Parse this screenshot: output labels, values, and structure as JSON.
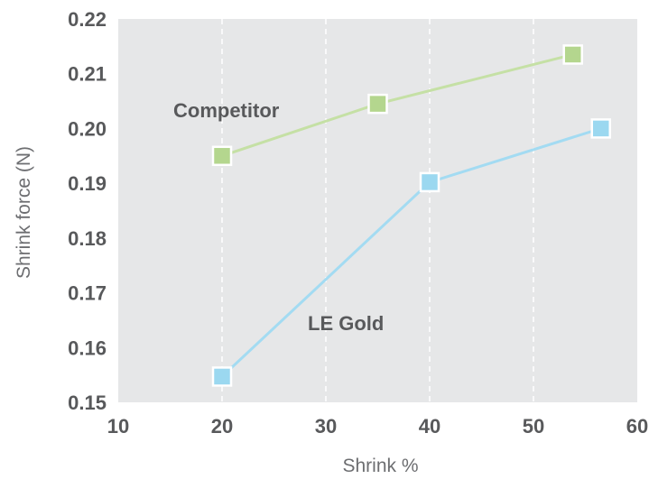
{
  "chart_data": {
    "type": "line",
    "title": "",
    "xlabel": "Shrink %",
    "ylabel": "Shrink force (N)",
    "xlim": [
      10,
      60
    ],
    "ylim": [
      0.15,
      0.22
    ],
    "x_ticks": [
      10,
      20,
      30,
      40,
      50,
      60
    ],
    "y_ticks": [
      "0.15",
      "0.16",
      "0.17",
      "0.18",
      "0.19",
      "0.20",
      "0.21",
      "0.22"
    ],
    "grid": "vertical dashed",
    "series": [
      {
        "name": "Competitor",
        "color": "#c5e0a5",
        "marker_color": "#b4d68e",
        "x": [
          20,
          35,
          53.8
        ],
        "y": [
          0.195,
          0.2045,
          0.2135
        ]
      },
      {
        "name": "LE Gold",
        "color": "#a3dbf2",
        "marker_color": "#9bd8f0",
        "x": [
          20,
          40,
          56.5
        ],
        "y": [
          0.1547,
          0.1902,
          0.2
        ]
      }
    ],
    "colors": {
      "plot_background": "#e6e7e8",
      "grid": "#ffffff",
      "tick_text": "#58595b",
      "axis_title": "#6d6e71"
    }
  }
}
